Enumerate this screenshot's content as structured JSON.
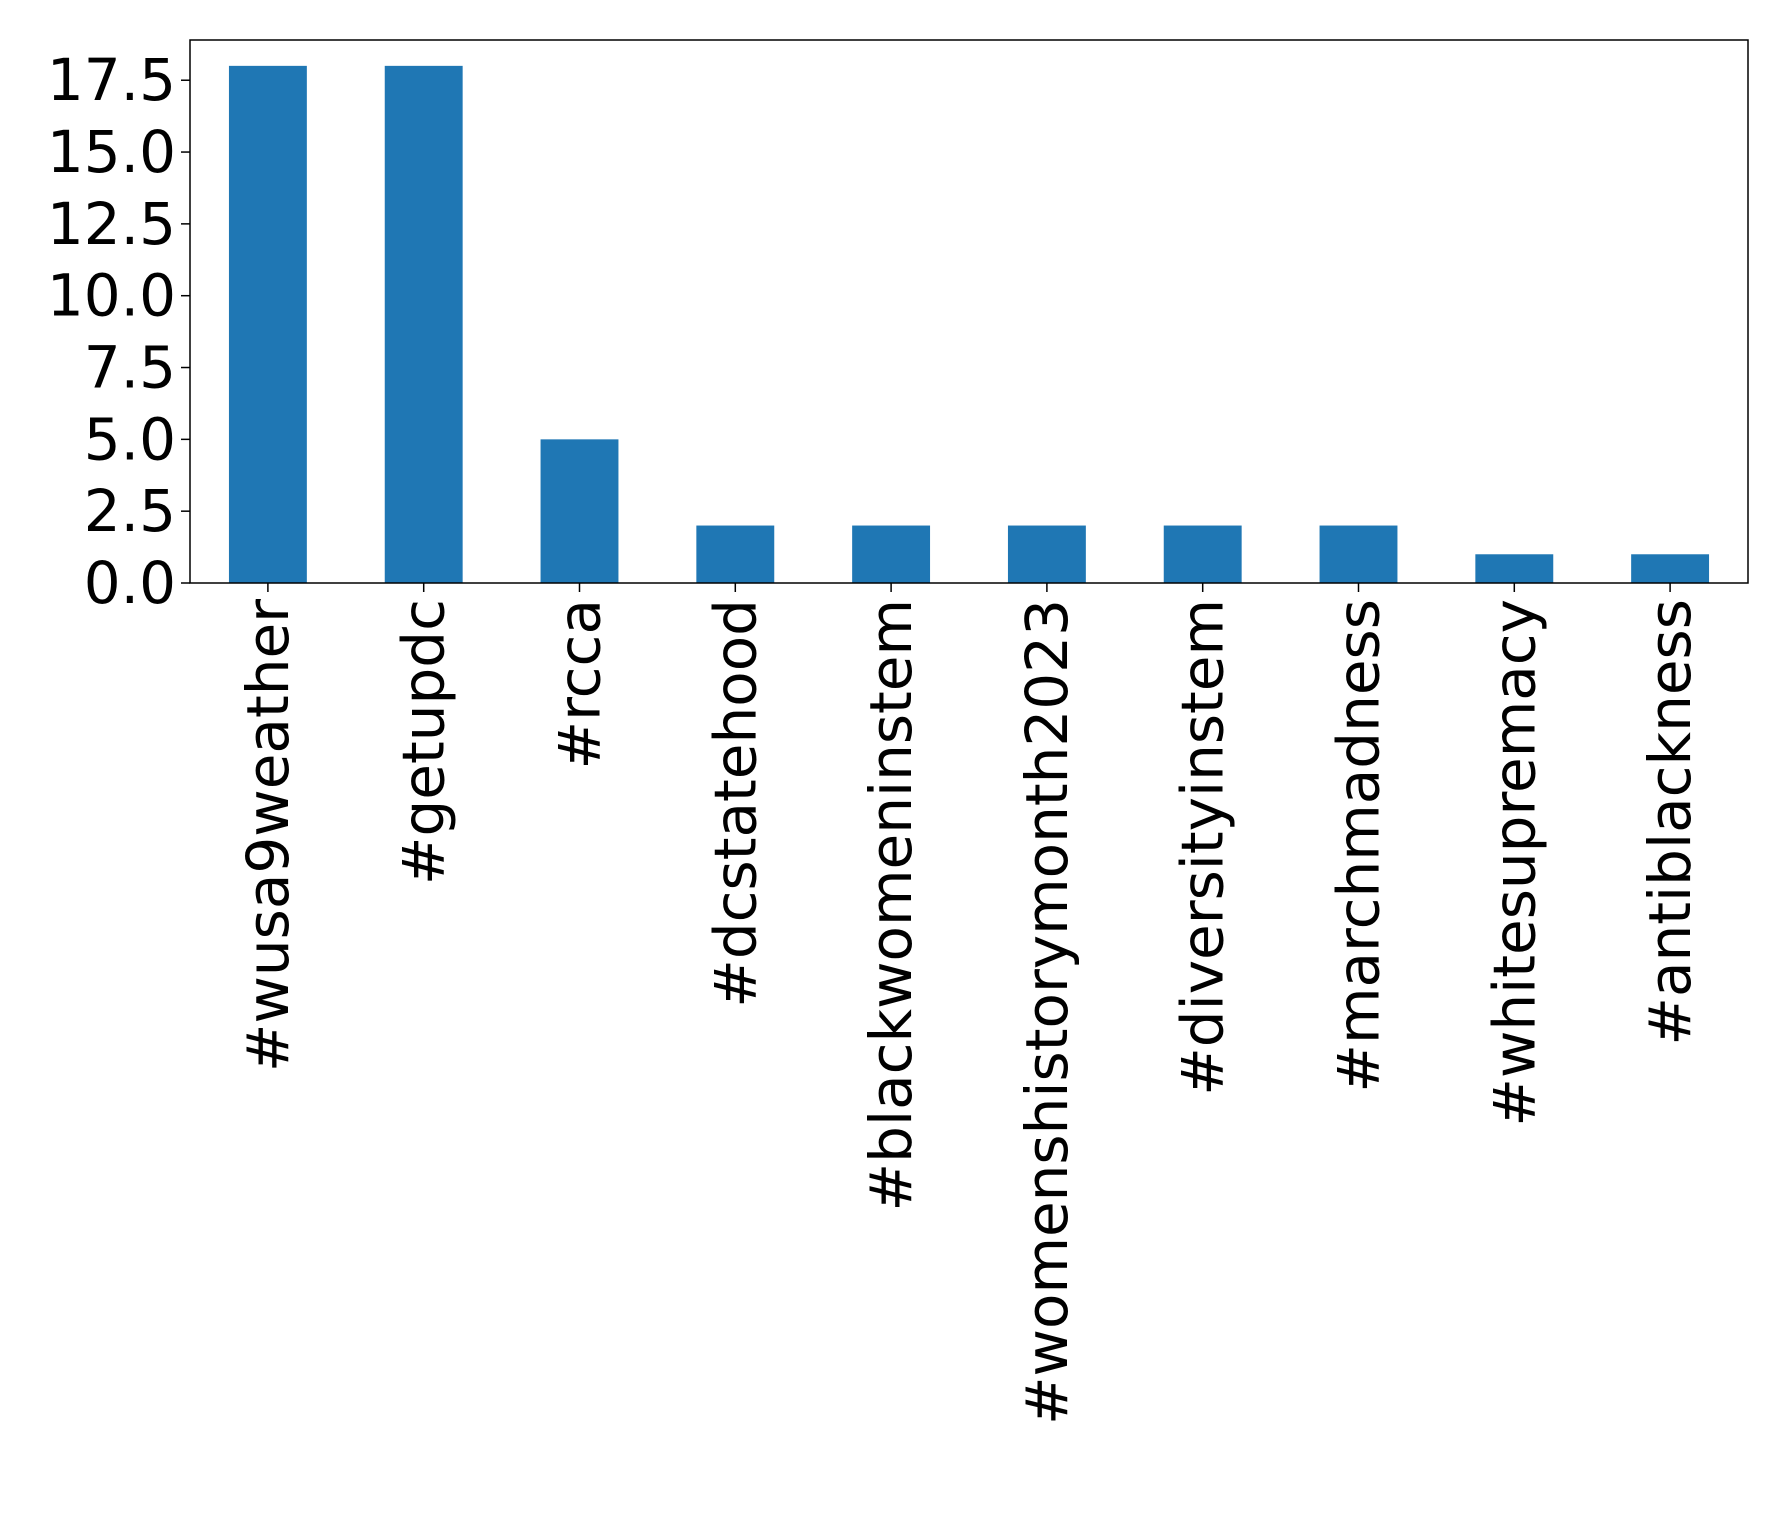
{
  "chart_data": {
    "type": "bar",
    "title": "",
    "xlabel": "",
    "ylabel": "",
    "categories": [
      "#wusa9weather",
      "#getupdc",
      "#rcca",
      "#dcstatehood",
      "#blackwomeninstem",
      "#womenshistorymonth2023",
      "#diversityinstem",
      "#marchmadness",
      "#whitesupremacy",
      "#antiblackness"
    ],
    "values": [
      18,
      18,
      5,
      2,
      2,
      2,
      2,
      2,
      1,
      1
    ],
    "ylim": [
      0,
      18.9
    ],
    "yticks": [
      0,
      2.5,
      5,
      7.5,
      10,
      12.5,
      15,
      17.5
    ],
    "ytick_labels": [
      "0.0",
      "2.5",
      "5.0",
      "7.5",
      "10.0",
      "12.5",
      "15.0",
      "17.5"
    ],
    "grid": false,
    "legend": false,
    "colors": {
      "bar": "#1f77b4",
      "axes": "#000000",
      "background": "#ffffff"
    }
  }
}
